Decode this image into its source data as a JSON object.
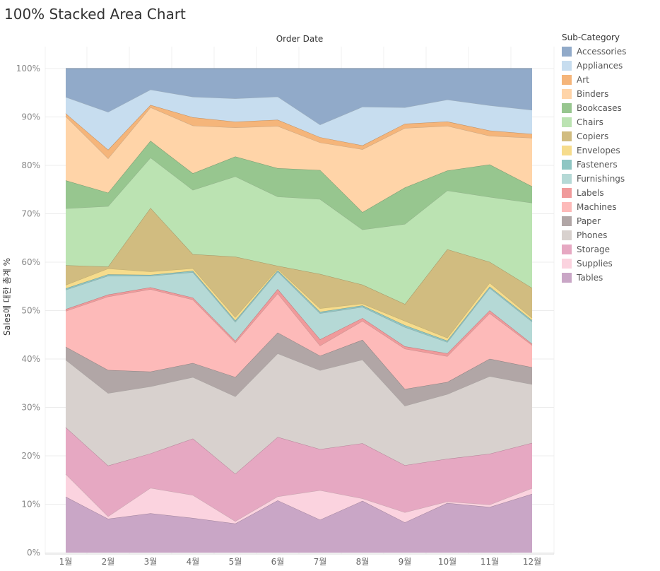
{
  "page_title": "100% Stacked Area Chart",
  "chart_data": {
    "type": "area",
    "stacked": "percent",
    "title": "100% Stacked Area Chart",
    "header": "Order Date",
    "xlabel": "Order Date",
    "ylabel": "Sales에 대한 총계 %",
    "ylim": [
      0,
      100
    ],
    "yticks": [
      "0%",
      "10%",
      "20%",
      "30%",
      "40%",
      "50%",
      "60%",
      "70%",
      "80%",
      "90%",
      "100%"
    ],
    "categories": [
      "1월",
      "2월",
      "3월",
      "4월",
      "5월",
      "6월",
      "7월",
      "8월",
      "9월",
      "10월",
      "11월",
      "12월"
    ],
    "legend_title": "Sub-Category",
    "legend_position": "right",
    "series": [
      {
        "name": "Tables",
        "color": "#c9a6c6",
        "values": [
          11.6,
          7.0,
          8.2,
          7.1,
          6.0,
          10.8,
          6.8,
          10.7,
          6.3,
          10.2,
          9.4,
          12.2
        ]
      },
      {
        "name": "Supplies",
        "color": "#fbd3df",
        "values": [
          4.7,
          0.5,
          5.3,
          4.7,
          0.5,
          0.8,
          6.1,
          0.5,
          2.1,
          0.3,
          0.5,
          1.2
        ]
      },
      {
        "name": "Storage",
        "color": "#e6a8c2",
        "values": [
          9.7,
          10.5,
          7.2,
          11.6,
          9.8,
          12.3,
          8.5,
          11.4,
          9.8,
          8.8,
          10.5,
          9.4
        ]
      },
      {
        "name": "Phones",
        "color": "#d8d1ce",
        "values": [
          14.0,
          15.0,
          14.0,
          12.6,
          16.0,
          17.3,
          16.3,
          17.3,
          12.4,
          13.3,
          16.0,
          12.2
        ]
      },
      {
        "name": "Paper",
        "color": "#b1a6a6",
        "values": [
          2.7,
          4.8,
          3.1,
          2.9,
          4.0,
          4.3,
          3.0,
          4.1,
          3.5,
          2.5,
          3.6,
          3.5
        ]
      },
      {
        "name": "Machines",
        "color": "#fdbab9",
        "values": [
          7.4,
          15.2,
          17.2,
          13.0,
          7.1,
          8.1,
          2.1,
          3.9,
          8.4,
          5.3,
          9.4,
          4.6
        ]
      },
      {
        "name": "Labels",
        "color": "#f09a9b",
        "values": [
          0.4,
          0.4,
          0.4,
          0.4,
          0.4,
          0.9,
          1.3,
          0.6,
          0.5,
          0.6,
          0.6,
          0.3
        ]
      },
      {
        "name": "Furnishings",
        "color": "#b5d9d6",
        "values": [
          4.0,
          3.9,
          2.4,
          5.2,
          3.9,
          3.6,
          5.4,
          2.3,
          4.0,
          2.3,
          4.6,
          4.6
        ]
      },
      {
        "name": "Fasteners",
        "color": "#8fc6c3",
        "values": [
          0.3,
          0.3,
          0.2,
          0.3,
          0.3,
          0.3,
          0.3,
          0.3,
          0.4,
          0.3,
          0.3,
          0.3
        ]
      },
      {
        "name": "Envelopes",
        "color": "#f6dc8c",
        "values": [
          0.7,
          1.2,
          0.7,
          0.5,
          0.7,
          0.3,
          0.7,
          0.4,
          0.9,
          0.6,
          0.8,
          0.5
        ]
      },
      {
        "name": "Copiers",
        "color": "#d1bc80",
        "values": [
          4.1,
          0.4,
          13.3,
          2.9,
          12.5,
          0.6,
          7.1,
          3.9,
          3.5,
          18.2,
          4.3,
          6.2
        ]
      },
      {
        "name": "Chairs",
        "color": "#bbe3b2",
        "values": [
          11.8,
          12.5,
          10.5,
          13.2,
          16.6,
          14.3,
          15.5,
          11.4,
          16.7,
          12.1,
          13.4,
          17.7
        ]
      },
      {
        "name": "Bookcases",
        "color": "#97c68f",
        "values": [
          5.8,
          2.8,
          3.5,
          3.4,
          4.1,
          5.9,
          6.0,
          3.6,
          7.6,
          4.1,
          6.7,
          3.4
        ]
      },
      {
        "name": "Binders",
        "color": "#ffd4a8",
        "values": [
          13.3,
          7.1,
          7.0,
          9.8,
          6.0,
          8.7,
          5.7,
          13.0,
          12.4,
          9.2,
          5.9,
          10.1
        ]
      },
      {
        "name": "Art",
        "color": "#f5b57a",
        "values": [
          0.6,
          1.8,
          0.5,
          1.7,
          1.2,
          1.3,
          1.1,
          0.8,
          0.9,
          0.9,
          1.1,
          0.8
        ]
      },
      {
        "name": "Appliances",
        "color": "#c7ddef",
        "values": [
          3.4,
          7.8,
          3.2,
          4.2,
          4.8,
          4.8,
          2.6,
          8.0,
          3.4,
          4.5,
          5.2,
          5.0
        ]
      },
      {
        "name": "Accessories",
        "color": "#91aac9",
        "values": [
          5.9,
          9.0,
          4.4,
          5.8,
          6.2,
          5.8,
          11.6,
          7.9,
          8.1,
          6.4,
          7.6,
          8.6
        ]
      }
    ]
  }
}
